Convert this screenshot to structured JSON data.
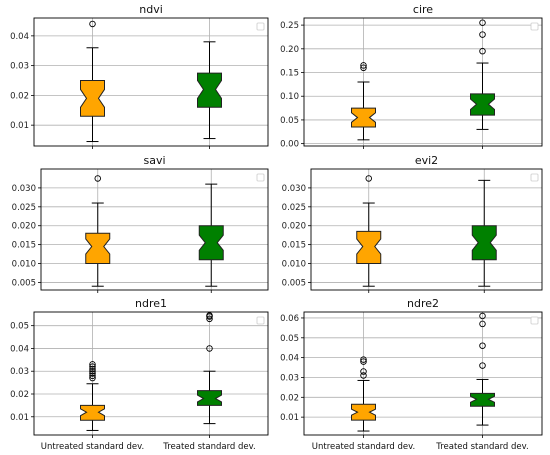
{
  "colors": {
    "untreated": "#ffa500",
    "treated": "#008000",
    "grid": "#b0b0b0",
    "axis": "#000000"
  },
  "chart_data": [
    {
      "type": "box",
      "title": "ndvi",
      "grid": true,
      "legend": "top-right (empty)",
      "categories": [
        "Untreated standard dev.",
        "Treated standard dev."
      ],
      "ylim": [
        0.003,
        0.046
      ],
      "yticks": [
        0.01,
        0.02,
        0.03,
        0.04
      ],
      "ytick_labels": [
        "0.01",
        "0.02",
        "0.03",
        "0.04"
      ],
      "xtick_labels_shown": false,
      "boxes": [
        {
          "whislo": 0.0045,
          "q1": 0.013,
          "med": 0.019,
          "q3": 0.025,
          "whishi": 0.036,
          "ci": [
            0.016,
            0.022
          ],
          "fliers": [
            0.044
          ]
        },
        {
          "whislo": 0.0055,
          "q1": 0.016,
          "med": 0.022,
          "q3": 0.0275,
          "whishi": 0.038,
          "ci": [
            0.019,
            0.025
          ],
          "fliers": []
        }
      ]
    },
    {
      "type": "box",
      "title": "cire",
      "grid": true,
      "legend": "top-right (empty)",
      "categories": [
        "Untreated standard dev.",
        "Treated standard dev."
      ],
      "ylim": [
        -0.005,
        0.265
      ],
      "yticks": [
        0.0,
        0.05,
        0.1,
        0.15,
        0.2,
        0.25
      ],
      "ytick_labels": [
        "0.00",
        "0.05",
        "0.10",
        "0.15",
        "0.20",
        "0.25"
      ],
      "xtick_labels_shown": false,
      "boxes": [
        {
          "whislo": 0.008,
          "q1": 0.035,
          "med": 0.055,
          "q3": 0.075,
          "whishi": 0.13,
          "ci": [
            0.045,
            0.065
          ],
          "fliers": [
            0.16,
            0.165
          ]
        },
        {
          "whislo": 0.03,
          "q1": 0.06,
          "med": 0.083,
          "q3": 0.105,
          "whishi": 0.17,
          "ci": [
            0.072,
            0.094
          ],
          "fliers": [
            0.195,
            0.23,
            0.255
          ]
        }
      ]
    },
    {
      "type": "box",
      "title": "savi",
      "grid": true,
      "legend": "top-right (empty)",
      "categories": [
        "Untreated standard dev.",
        "Treated standard dev."
      ],
      "ylim": [
        0.003,
        0.035
      ],
      "yticks": [
        0.005,
        0.01,
        0.015,
        0.02,
        0.025,
        0.03
      ],
      "ytick_labels": [
        "0.005",
        "0.010",
        "0.015",
        "0.020",
        "0.025",
        "0.030"
      ],
      "xtick_labels_shown": false,
      "boxes": [
        {
          "whislo": 0.004,
          "q1": 0.01,
          "med": 0.0145,
          "q3": 0.018,
          "whishi": 0.026,
          "ci": [
            0.0125,
            0.0165
          ],
          "fliers": [
            0.0325
          ]
        },
        {
          "whislo": 0.004,
          "q1": 0.011,
          "med": 0.0155,
          "q3": 0.02,
          "whishi": 0.031,
          "ci": [
            0.0135,
            0.0175
          ],
          "fliers": []
        }
      ]
    },
    {
      "type": "box",
      "title": "evi2",
      "grid": true,
      "legend": "top-right (empty)",
      "categories": [
        "Untreated standard dev.",
        "Treated standard dev."
      ],
      "ylim": [
        0.003,
        0.035
      ],
      "yticks": [
        0.005,
        0.01,
        0.015,
        0.02,
        0.025,
        0.03
      ],
      "ytick_labels": [
        "0.005",
        "0.010",
        "0.015",
        "0.020",
        "0.025",
        "0.030"
      ],
      "xtick_labels_shown": false,
      "boxes": [
        {
          "whislo": 0.004,
          "q1": 0.01,
          "med": 0.0145,
          "q3": 0.0185,
          "whishi": 0.026,
          "ci": [
            0.0125,
            0.0165
          ],
          "fliers": [
            0.0325
          ]
        },
        {
          "whislo": 0.004,
          "q1": 0.011,
          "med": 0.0155,
          "q3": 0.02,
          "whishi": 0.032,
          "ci": [
            0.0135,
            0.0175
          ],
          "fliers": []
        }
      ]
    },
    {
      "type": "box",
      "title": "ndre1",
      "grid": true,
      "legend": "top-right (empty)",
      "categories": [
        "Untreated standard dev.",
        "Treated standard dev."
      ],
      "ylim": [
        0.002,
        0.056
      ],
      "yticks": [
        0.01,
        0.02,
        0.03,
        0.04,
        0.05
      ],
      "ytick_labels": [
        "0.01",
        "0.02",
        "0.03",
        "0.04",
        "0.05"
      ],
      "xtick_labels_shown": true,
      "boxes": [
        {
          "whislo": 0.004,
          "q1": 0.0085,
          "med": 0.012,
          "q3": 0.015,
          "whishi": 0.0245,
          "ci": [
            0.0105,
            0.0135
          ],
          "fliers": [
            0.027,
            0.028,
            0.029,
            0.03,
            0.031,
            0.032,
            0.033
          ]
        },
        {
          "whislo": 0.007,
          "q1": 0.015,
          "med": 0.018,
          "q3": 0.0215,
          "whishi": 0.03,
          "ci": [
            0.0165,
            0.0195
          ],
          "fliers": [
            0.04,
            0.053,
            0.054,
            0.0545
          ]
        }
      ]
    },
    {
      "type": "box",
      "title": "ndre2",
      "grid": true,
      "legend": "top-right (empty)",
      "categories": [
        "Untreated standard dev.",
        "Treated standard dev."
      ],
      "ylim": [
        0.001,
        0.063
      ],
      "yticks": [
        0.01,
        0.02,
        0.03,
        0.04,
        0.05,
        0.06
      ],
      "ytick_labels": [
        "0.01",
        "0.02",
        "0.03",
        "0.04",
        "0.05",
        "0.06"
      ],
      "xtick_labels_shown": true,
      "boxes": [
        {
          "whislo": 0.003,
          "q1": 0.0085,
          "med": 0.0125,
          "q3": 0.0165,
          "whishi": 0.0285,
          "ci": [
            0.011,
            0.014
          ],
          "fliers": [
            0.031,
            0.033,
            0.038,
            0.039
          ]
        },
        {
          "whislo": 0.006,
          "q1": 0.0155,
          "med": 0.019,
          "q3": 0.022,
          "whishi": 0.029,
          "ci": [
            0.0175,
            0.0205
          ],
          "fliers": [
            0.036,
            0.046,
            0.057,
            0.061
          ]
        }
      ]
    }
  ]
}
